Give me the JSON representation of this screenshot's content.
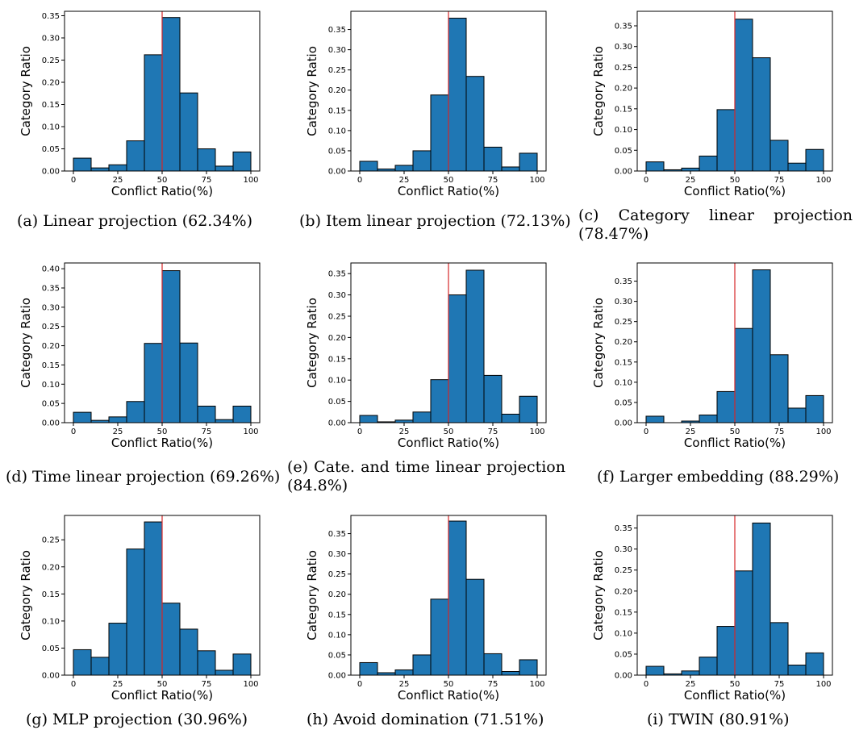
{
  "style": {
    "bar_color": "#1f77b4",
    "bar_edge": "#000000",
    "line_color": "#d62728"
  },
  "chart_data": [
    {
      "id": "a",
      "type": "bar",
      "xlabel": "Conflict Ratio(%)",
      "ylabel": "Category Ratio",
      "xlim": [
        -5,
        105
      ],
      "ylim": [
        0,
        0.36
      ],
      "xticks": [
        "0",
        "25",
        "50",
        "75",
        "100"
      ],
      "yticks": [
        "0.00",
        "0.05",
        "0.10",
        "0.15",
        "0.20",
        "0.25",
        "0.30",
        "0.35"
      ],
      "bin_edges": [
        0,
        10,
        20,
        30,
        40,
        50,
        60,
        70,
        80,
        90,
        100
      ],
      "values": [
        0.029,
        0.007,
        0.014,
        0.068,
        0.262,
        0.346,
        0.176,
        0.05,
        0.011,
        0.043
      ],
      "vline": 50,
      "caption_label": "(a) Linear projection (62.34%)"
    },
    {
      "id": "b",
      "type": "bar",
      "xlabel": "Conflict Ratio(%)",
      "ylabel": "Category Ratio",
      "xlim": [
        -5,
        105
      ],
      "ylim": [
        0,
        0.395
      ],
      "xticks": [
        "0",
        "25",
        "50",
        "75",
        "100"
      ],
      "yticks": [
        "0.00",
        "0.05",
        "0.10",
        "0.15",
        "0.20",
        "0.25",
        "0.30",
        "0.35"
      ],
      "bin_edges": [
        0,
        10,
        20,
        30,
        40,
        50,
        60,
        70,
        80,
        90,
        100
      ],
      "values": [
        0.024,
        0.005,
        0.014,
        0.05,
        0.188,
        0.378,
        0.234,
        0.059,
        0.01,
        0.044
      ],
      "vline": 50,
      "caption_label": "(b) Item linear projection (72.13%)"
    },
    {
      "id": "c",
      "type": "bar",
      "xlabel": "Conflict Ratio(%)",
      "ylabel": "Category Ratio",
      "xlim": [
        -5,
        105
      ],
      "ylim": [
        0,
        0.385
      ],
      "xticks": [
        "0",
        "25",
        "50",
        "75",
        "100"
      ],
      "yticks": [
        "0.00",
        "0.05",
        "0.10",
        "0.15",
        "0.20",
        "0.25",
        "0.30",
        "0.35"
      ],
      "bin_edges": [
        0,
        10,
        20,
        30,
        40,
        50,
        60,
        70,
        80,
        90,
        100
      ],
      "values": [
        0.022,
        0.003,
        0.007,
        0.036,
        0.148,
        0.366,
        0.273,
        0.074,
        0.019,
        0.052
      ],
      "vline": 50,
      "caption_label": "(c) Category linear projection (78.47%)"
    },
    {
      "id": "d",
      "type": "bar",
      "xlabel": "Conflict Ratio(%)",
      "ylabel": "Category Ratio",
      "xlim": [
        -5,
        105
      ],
      "ylim": [
        0,
        0.415
      ],
      "xticks": [
        "0",
        "25",
        "50",
        "75",
        "100"
      ],
      "yticks": [
        "0.00",
        "0.05",
        "0.10",
        "0.15",
        "0.20",
        "0.25",
        "0.30",
        "0.35",
        "0.40"
      ],
      "bin_edges": [
        0,
        10,
        20,
        30,
        40,
        50,
        60,
        70,
        80,
        90,
        100
      ],
      "values": [
        0.027,
        0.006,
        0.015,
        0.055,
        0.206,
        0.395,
        0.207,
        0.043,
        0.008,
        0.043
      ],
      "vline": 50,
      "caption_label": "(d) Time linear projection (69.26%)"
    },
    {
      "id": "e",
      "type": "bar",
      "xlabel": "Conflict Ratio(%)",
      "ylabel": "Category Ratio",
      "xlim": [
        -5,
        105
      ],
      "ylim": [
        0,
        0.375
      ],
      "xticks": [
        "0",
        "25",
        "50",
        "75",
        "100"
      ],
      "yticks": [
        "0.00",
        "0.05",
        "0.10",
        "0.15",
        "0.20",
        "0.25",
        "0.30",
        "0.35"
      ],
      "bin_edges": [
        0,
        10,
        20,
        30,
        40,
        50,
        60,
        70,
        80,
        90,
        100
      ],
      "values": [
        0.017,
        0.002,
        0.006,
        0.025,
        0.101,
        0.3,
        0.358,
        0.111,
        0.02,
        0.062
      ],
      "vline": 50,
      "caption_label": "(e) Cate. and time linear projection (84.8%)"
    },
    {
      "id": "f",
      "type": "bar",
      "xlabel": "Conflict Ratio(%)",
      "ylabel": "Category Ratio",
      "xlim": [
        -5,
        105
      ],
      "ylim": [
        0,
        0.395
      ],
      "xticks": [
        "0",
        "25",
        "50",
        "75",
        "100"
      ],
      "yticks": [
        "0.00",
        "0.05",
        "0.10",
        "0.15",
        "0.20",
        "0.25",
        "0.30",
        "0.35"
      ],
      "bin_edges": [
        0,
        10,
        20,
        30,
        40,
        50,
        60,
        70,
        80,
        90,
        100
      ],
      "values": [
        0.016,
        0.0,
        0.004,
        0.019,
        0.077,
        0.233,
        0.378,
        0.168,
        0.036,
        0.067
      ],
      "vline": 50,
      "caption_label": "(f) Larger embedding (88.29%)"
    },
    {
      "id": "g",
      "type": "bar",
      "xlabel": "Conflict Ratio(%)",
      "ylabel": "Category Ratio",
      "xlim": [
        -5,
        105
      ],
      "ylim": [
        0,
        0.295
      ],
      "xticks": [
        "0",
        "25",
        "50",
        "75",
        "100"
      ],
      "yticks": [
        "0.00",
        "0.05",
        "0.10",
        "0.15",
        "0.20",
        "0.25"
      ],
      "bin_edges": [
        0,
        10,
        20,
        30,
        40,
        50,
        60,
        70,
        80,
        90,
        100
      ],
      "values": [
        0.047,
        0.033,
        0.096,
        0.233,
        0.283,
        0.133,
        0.085,
        0.045,
        0.009,
        0.039
      ],
      "vline": 50,
      "caption_label": "(g) MLP projection (30.96%)"
    },
    {
      "id": "h",
      "type": "bar",
      "xlabel": "Conflict Ratio(%)",
      "ylabel": "Category Ratio",
      "xlim": [
        -5,
        105
      ],
      "ylim": [
        0,
        0.395
      ],
      "xticks": [
        "0",
        "25",
        "50",
        "75",
        "100"
      ],
      "yticks": [
        "0.00",
        "0.05",
        "0.10",
        "0.15",
        "0.20",
        "0.25",
        "0.30",
        "0.35"
      ],
      "bin_edges": [
        0,
        10,
        20,
        30,
        40,
        50,
        60,
        70,
        80,
        90,
        100
      ],
      "values": [
        0.031,
        0.006,
        0.013,
        0.05,
        0.188,
        0.381,
        0.237,
        0.053,
        0.009,
        0.038
      ],
      "vline": 50,
      "caption_label": "(h) Avoid domination (71.51%)"
    },
    {
      "id": "i",
      "type": "bar",
      "xlabel": "Conflict Ratio(%)",
      "ylabel": "Category Ratio",
      "xlim": [
        -5,
        105
      ],
      "ylim": [
        0,
        0.38
      ],
      "xticks": [
        "0",
        "25",
        "50",
        "75",
        "100"
      ],
      "yticks": [
        "0.00",
        "0.05",
        "0.10",
        "0.15",
        "0.20",
        "0.25",
        "0.30",
        "0.35"
      ],
      "bin_edges": [
        0,
        10,
        20,
        30,
        40,
        50,
        60,
        70,
        80,
        90,
        100
      ],
      "values": [
        0.021,
        0.003,
        0.01,
        0.043,
        0.116,
        0.248,
        0.362,
        0.125,
        0.024,
        0.053
      ],
      "vline": 50,
      "caption_label": "(i) TWIN (80.91%)"
    }
  ]
}
